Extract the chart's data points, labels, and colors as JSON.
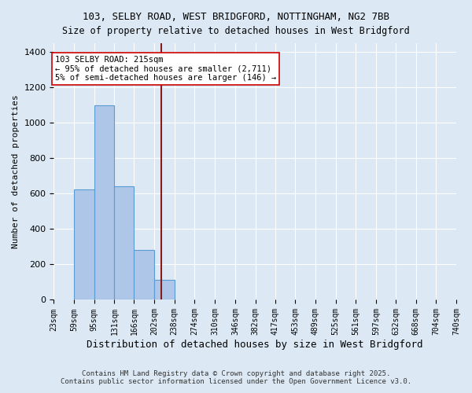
{
  "title_line1": "103, SELBY ROAD, WEST BRIDGFORD, NOTTINGHAM, NG2 7BB",
  "title_line2": "Size of property relative to detached houses in West Bridgford",
  "xlabel": "Distribution of detached houses by size in West Bridgford",
  "ylabel": "Number of detached properties",
  "bin_edges": [
    23,
    59,
    95,
    131,
    166,
    202,
    238,
    274,
    310,
    346,
    382,
    417,
    453,
    489,
    525,
    561,
    597,
    632,
    668,
    704,
    740
  ],
  "bar_heights": [
    0,
    625,
    1100,
    640,
    280,
    115,
    0,
    0,
    0,
    0,
    0,
    0,
    0,
    0,
    0,
    0,
    0,
    0,
    0,
    0
  ],
  "bar_color": "#aec6e8",
  "bar_edge_color": "#5a9bd4",
  "property_size": 215,
  "property_line_color": "#8b1a1a",
  "annotation_text": "103 SELBY ROAD: 215sqm\n← 95% of detached houses are smaller (2,711)\n5% of semi-detached houses are larger (146) →",
  "annotation_box_color": "#ffffff",
  "annotation_border_color": "#cc0000",
  "ylim": [
    0,
    1450
  ],
  "yticks": [
    0,
    200,
    400,
    600,
    800,
    1000,
    1200,
    1400
  ],
  "background_color": "#dce9f5",
  "grid_color": "#ffffff",
  "footer_line1": "Contains HM Land Registry data © Crown copyright and database right 2025.",
  "footer_line2": "Contains public sector information licensed under the Open Government Licence v3.0."
}
